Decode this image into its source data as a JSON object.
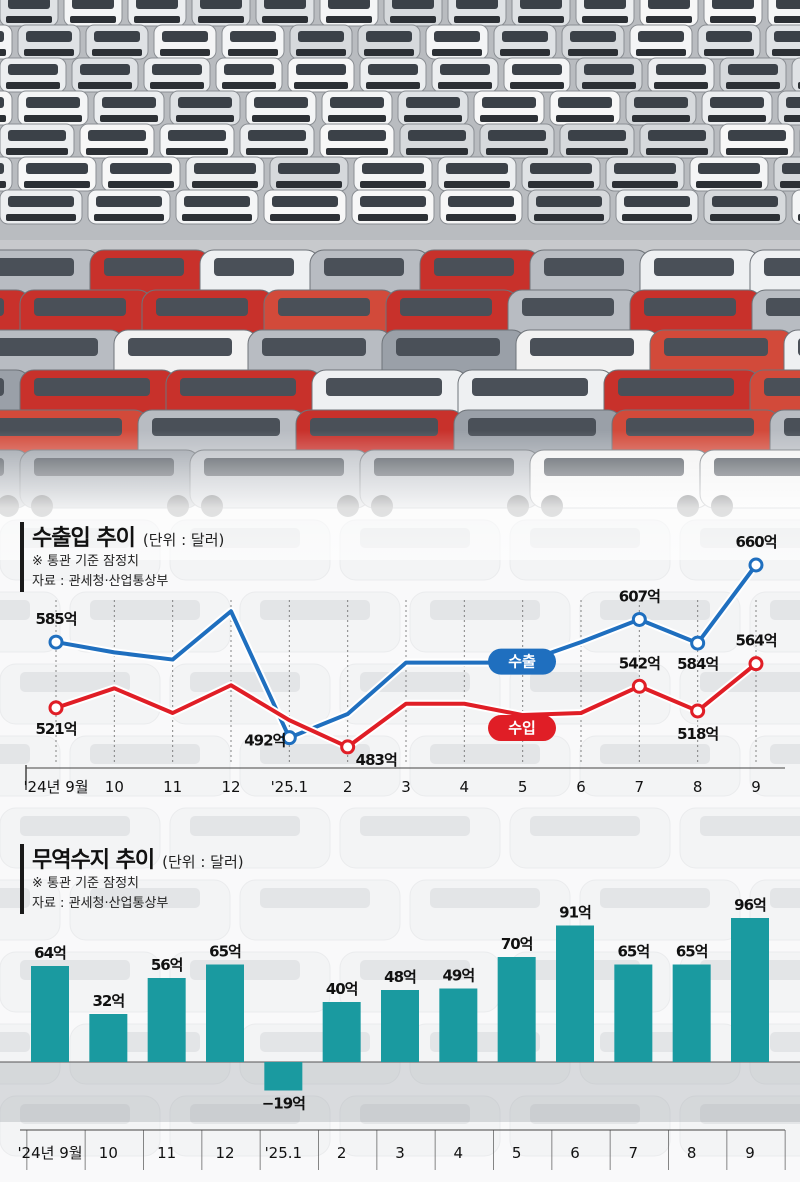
{
  "colors": {
    "export": "#1f6fbf",
    "import": "#e01e26",
    "balance_bar": "#1a9aa0",
    "title_bar": "#1a1a1a"
  },
  "photo": "car-lot-photo",
  "trade_chart": {
    "title": "수출입 추이",
    "unit": "(단위 : 달러)",
    "note1": "※ 통관 기준 잠정치",
    "note2": "자료 : 관세청·산업통상부"
  },
  "balance_chart": {
    "title": "무역수지 추이",
    "unit": "(단위 : 달러)",
    "note1": "※ 통관 기준 잠정치",
    "note2": "자료 : 관세청·산업통상부"
  },
  "chart_data": [
    {
      "type": "line",
      "title": "수출입 추이",
      "unit": "(단위 : 달러)",
      "categories": [
        "'24년 9월",
        "10",
        "11",
        "12",
        "'25.1",
        "2",
        "3",
        "4",
        "5",
        "6",
        "7",
        "8",
        "9"
      ],
      "series": [
        {
          "name": "수출",
          "values": [
            585,
            575,
            568,
            615,
            492,
            515,
            565,
            565,
            565,
            585,
            607,
            584,
            660
          ],
          "labels": [
            "585억",
            null,
            null,
            null,
            "492억",
            null,
            null,
            null,
            null,
            null,
            "607억",
            "584억",
            "660억"
          ]
        },
        {
          "name": "수입",
          "values": [
            521,
            540,
            516,
            543,
            509,
            483,
            525,
            525,
            514,
            516,
            542,
            518,
            564
          ],
          "labels": [
            "521억",
            null,
            null,
            null,
            null,
            "483억",
            null,
            null,
            null,
            null,
            "542억",
            "518억",
            "564억"
          ]
        }
      ]
    },
    {
      "type": "bar",
      "title": "무역수지 추이",
      "unit": "(단위 : 달러)",
      "categories": [
        "'24년 9월",
        "10",
        "11",
        "12",
        "'25.1",
        "2",
        "3",
        "4",
        "5",
        "6",
        "7",
        "8",
        "9"
      ],
      "values": [
        64,
        32,
        56,
        65,
        -19,
        40,
        48,
        49,
        70,
        91,
        65,
        65,
        96
      ],
      "labels": [
        "64억",
        "32억",
        "56억",
        "65억",
        "−19억",
        "40억",
        "48억",
        "49억",
        "70억",
        "91억",
        "65억",
        "65억",
        "96억"
      ]
    }
  ]
}
